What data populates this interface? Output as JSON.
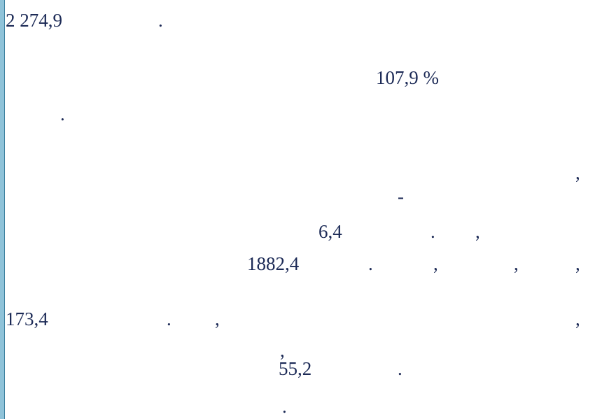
{
  "lines": [
    [
      "2 274,9",
      "."
    ],
    [
      "107,9 %"
    ],
    [
      "."
    ],
    [
      ","
    ],
    [
      "-"
    ],
    [
      "6,4",
      ".",
      ","
    ],
    [
      "1882,4",
      ".",
      ",",
      ",",
      ","
    ],
    [
      "173,4",
      ".",
      ",",
      ","
    ],
    [
      ","
    ],
    [
      "55,2",
      "."
    ],
    [
      "."
    ]
  ]
}
